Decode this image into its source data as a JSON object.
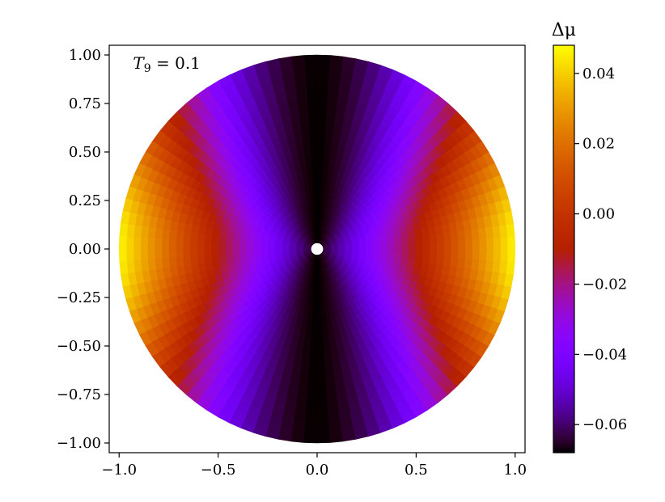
{
  "chart_data": {
    "type": "heatmap",
    "title": "",
    "xlabel": "",
    "ylabel": "",
    "xlim": [
      -1.05,
      1.05
    ],
    "ylim": [
      -1.05,
      1.05
    ],
    "x_ticks": [
      -1.0,
      -0.5,
      0.0,
      0.5,
      1.0
    ],
    "x_tick_labels": [
      "−1.0",
      "−0.5",
      "0.0",
      "0.5",
      "1.0"
    ],
    "y_ticks": [
      1.0,
      0.75,
      0.5,
      0.25,
      0.0,
      -0.25,
      -0.5,
      -0.75,
      -1.0
    ],
    "y_tick_labels": [
      "1.00",
      "0.75",
      "0.50",
      "0.25",
      "0.00",
      "−0.25",
      "−0.50",
      "−0.75",
      "−1.00"
    ],
    "annotation": {
      "symbol": "T",
      "subscript": "9",
      "rest": " = 0.1",
      "position_data": [
        -0.93,
        0.93
      ]
    },
    "disk": {
      "center": [
        0.0,
        0.0
      ],
      "radius": 1.0,
      "inner_marker_radius": 0.02,
      "inner_marker_color": "#ffffff",
      "field_description": "delta_mu(r, theta) approx -0.068 + 0.115 * r * (cos theta)^2",
      "value_center_axis": -0.068,
      "value_max_equator": 0.047,
      "value_poles_outer": -0.067
    },
    "colorbar": {
      "label": "Δμ",
      "colormap": "gnuplot",
      "vmin": -0.068,
      "vmax": 0.048,
      "ticks": [
        0.04,
        0.02,
        0.0,
        -0.02,
        -0.04,
        -0.06
      ],
      "tick_labels": [
        "0.04",
        "0.02",
        "0.00",
        "−0.02",
        "−0.04",
        "−0.06"
      ]
    }
  }
}
